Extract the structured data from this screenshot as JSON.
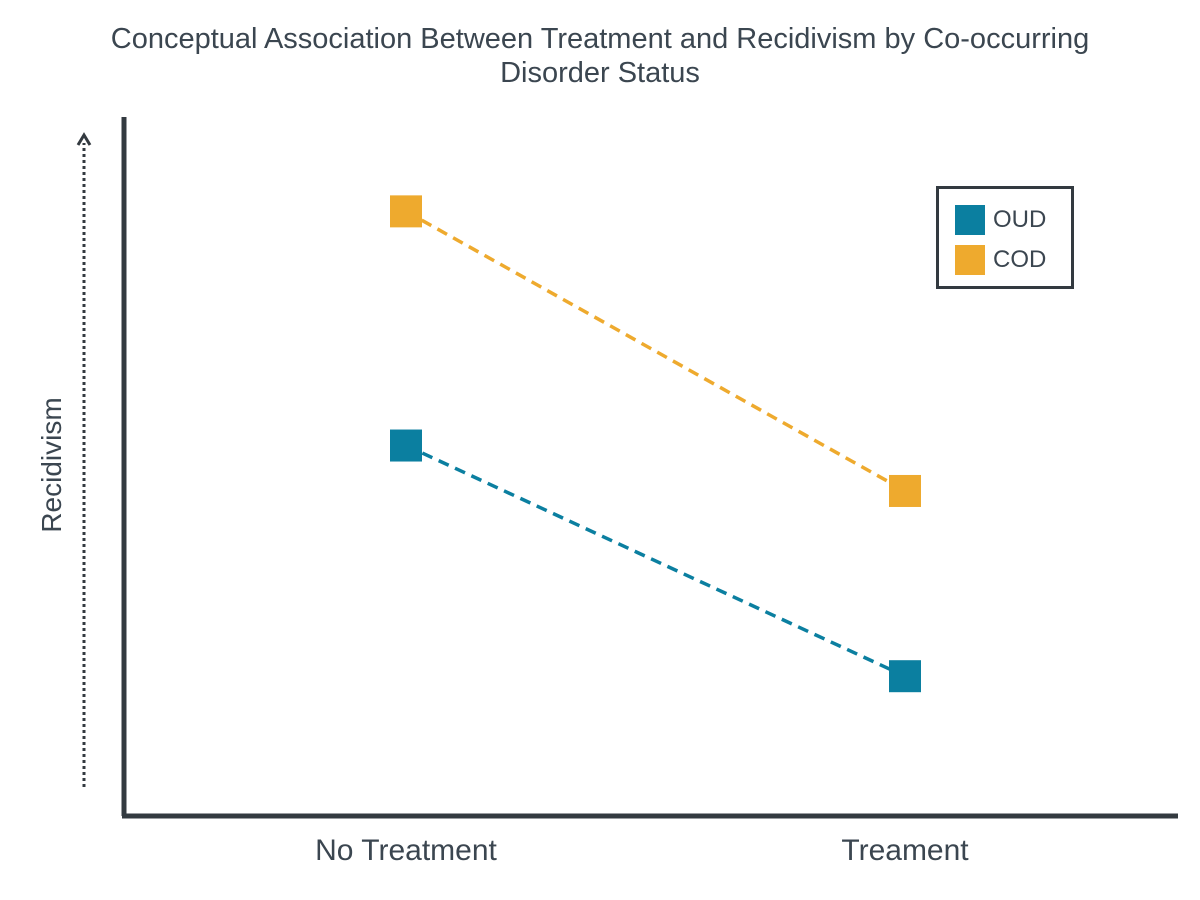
{
  "chart_data": {
    "type": "line",
    "title": "Conceptual Association Between Treatment and Recidivism by Co-occurring Disorder Status",
    "xlabel": "",
    "ylabel": "Recidivism",
    "categories": [
      "No Treatment",
      "Treament"
    ],
    "ylim": [
      0,
      10
    ],
    "grid": false,
    "legend_position": "top-right",
    "series": [
      {
        "name": "OUD",
        "values": [
          5.3,
          2.0
        ],
        "color": "#0b7fa0",
        "line_style": "dashed",
        "marker": "square"
      },
      {
        "name": "COD",
        "values": [
          8.65,
          4.65
        ],
        "color": "#eeaa2e",
        "line_style": "dashed",
        "marker": "square"
      }
    ]
  },
  "colors": {
    "axis": "#333a40",
    "text": "#3b4650"
  }
}
